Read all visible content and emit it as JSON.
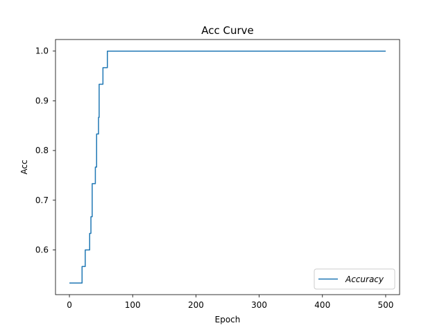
{
  "chart_data": {
    "type": "line",
    "title": "Acc Curve",
    "xlabel": "Epoch",
    "ylabel": "Acc",
    "xlim": [
      -22,
      522
    ],
    "ylim": [
      0.51,
      1.0233
    ],
    "xticks": [
      0,
      100,
      200,
      300,
      400,
      500
    ],
    "yticks": [
      0.6,
      0.7,
      0.8,
      0.9,
      1.0
    ],
    "ytick_labels": [
      "0.6",
      "0.7",
      "0.8",
      "0.9",
      "1.0"
    ],
    "grid": false,
    "legend": {
      "position": "bottom-right",
      "entries": [
        "Accuracy"
      ]
    },
    "series": [
      {
        "name": "Accuracy",
        "color": "#1f77b4",
        "points": [
          [
            0,
            0.5333
          ],
          [
            20,
            0.5333
          ],
          [
            20,
            0.5667
          ],
          [
            25,
            0.5667
          ],
          [
            25,
            0.6
          ],
          [
            32,
            0.6
          ],
          [
            32,
            0.6333
          ],
          [
            34,
            0.6333
          ],
          [
            34,
            0.6667
          ],
          [
            36,
            0.6667
          ],
          [
            36,
            0.7333
          ],
          [
            41,
            0.7333
          ],
          [
            41,
            0.7667
          ],
          [
            43,
            0.7667
          ],
          [
            43,
            0.8333
          ],
          [
            46,
            0.8333
          ],
          [
            46,
            0.8667
          ],
          [
            47,
            0.8667
          ],
          [
            47,
            0.9333
          ],
          [
            53,
            0.9333
          ],
          [
            53,
            0.9667
          ],
          [
            60,
            0.9667
          ],
          [
            60,
            1.0
          ],
          [
            500,
            1.0
          ]
        ]
      }
    ]
  }
}
